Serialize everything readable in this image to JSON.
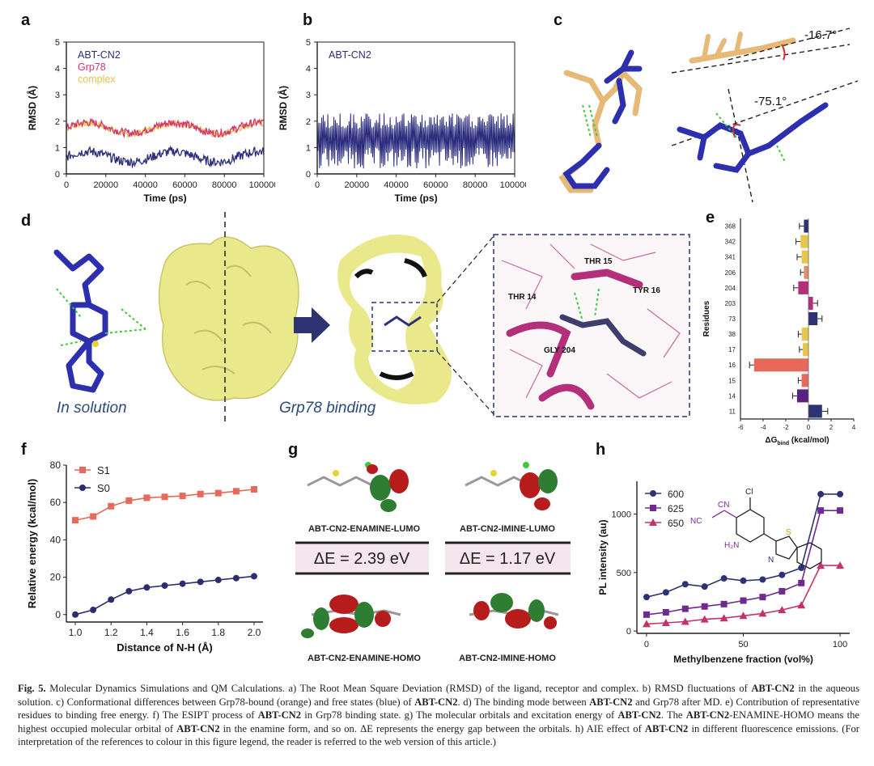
{
  "figure": {
    "panel_labels": [
      "a",
      "b",
      "c",
      "d",
      "e",
      "f",
      "g",
      "h"
    ],
    "colors": {
      "abt_cn2": "#2c2d7d",
      "grp78": "#d2356f",
      "complex": "#e6c24a",
      "s1": "#e8685a",
      "s0": "#2c2d6e",
      "surface": "#e9e88a",
      "purple": "#7a2a9a",
      "pink": "#c2336d"
    },
    "panel_c": {
      "angle1": "-16.7°",
      "angle2": "-75.1°"
    },
    "panel_d": {
      "solution_label": "In solution",
      "binding_label": "Grp78 binding",
      "residue_labels": [
        "THR 15",
        "THR 14",
        "TYR 16",
        "GLY 204"
      ]
    },
    "panel_g": {
      "enamine_lumo": "ABT-CN2-ENAMINE-LUMO",
      "imine_lumo": "ABT-CN2-IMINE-LUMO",
      "enamine_gap": "ΔE = 2.39 eV",
      "imine_gap": "ΔE = 1.17 eV",
      "enamine_homo": "ABT-CN2-ENAMINE-HOMO",
      "imine_homo": "ABT-CN2-IMINE-HOMO"
    },
    "panel_h": {
      "molecule_labels": [
        "CN",
        "NC",
        "Cl",
        "H₂N",
        "S",
        "N"
      ]
    }
  },
  "chart_data": [
    {
      "id": "a",
      "type": "line",
      "xlabel": "Time (ps)",
      "ylabel": "RMSD (Å)",
      "xlim": [
        0,
        100000
      ],
      "ylim": [
        0,
        5
      ],
      "xticks": [
        "0",
        "20000",
        "40000",
        "60000",
        "80000",
        "100000"
      ],
      "yticks": [
        "0",
        "1",
        "2",
        "3",
        "4",
        "5"
      ],
      "series": [
        {
          "name": "ABT-CN2",
          "color": "#2c2d7d",
          "mean": 0.65,
          "noise": 0.18
        },
        {
          "name": "Grp78",
          "color": "#d2356f",
          "mean": 1.75,
          "noise": 0.15
        },
        {
          "name": "complex",
          "color": "#e6c24a",
          "mean": 1.72,
          "noise": 0.12
        }
      ]
    },
    {
      "id": "b",
      "type": "line",
      "xlabel": "Time (ps)",
      "ylabel": "RMSD (Å)",
      "xlim": [
        0,
        100000
      ],
      "ylim": [
        0,
        5
      ],
      "xticks": [
        "0",
        "20000",
        "40000",
        "60000",
        "80000",
        "100000"
      ],
      "yticks": [
        "0",
        "1",
        "2",
        "3",
        "4",
        "5"
      ],
      "series": [
        {
          "name": "ABT-CN2",
          "color": "#2c2d7d",
          "min": 0.2,
          "max": 2.3
        }
      ]
    },
    {
      "id": "e",
      "type": "bar",
      "orientation": "horizontal",
      "xlabel": "ΔG",
      "xlabel_sub": "bind",
      "xlabel_unit": " (kcal/mol)",
      "ylabel": "Residues",
      "xlim": [
        -6,
        4
      ],
      "xticks": [
        "-6",
        "-4",
        "-2",
        "0",
        "2",
        "4"
      ],
      "categories": [
        "368",
        "342",
        "341",
        "206",
        "204",
        "203",
        "73",
        "38",
        "17",
        "16",
        "15",
        "14",
        "11"
      ],
      "values": [
        -0.4,
        -0.7,
        -0.6,
        -0.4,
        -0.9,
        0.4,
        0.8,
        -0.6,
        -0.5,
        -4.8,
        -0.6,
        -1.0,
        1.2
      ],
      "errors": [
        0.4,
        0.4,
        0.4,
        0.3,
        0.4,
        0.4,
        0.4,
        0.3,
        0.3,
        0.4,
        0.3,
        0.4,
        0.5
      ],
      "colors": [
        "#2c3272",
        "#e9c54a",
        "#e9c54a",
        "#e88b69",
        "#b32f7a",
        "#b32f7a",
        "#2c3272",
        "#e9c54a",
        "#e9c54a",
        "#e8685a",
        "#e8685a",
        "#5a2180",
        "#2c3272"
      ]
    },
    {
      "id": "f",
      "type": "line",
      "xlabel": "Distance of N-H (Å)",
      "ylabel": "Relative energy (kcal/mol)",
      "xlim": [
        0.95,
        2.05
      ],
      "ylim": [
        -4,
        80
      ],
      "xticks": [
        "1.0",
        "1.2",
        "1.4",
        "1.6",
        "1.8",
        "2.0"
      ],
      "yticks": [
        "0",
        "20",
        "40",
        "60",
        "80"
      ],
      "x": [
        1.0,
        1.1,
        1.2,
        1.3,
        1.4,
        1.5,
        1.6,
        1.7,
        1.8,
        1.9,
        2.0
      ],
      "series": [
        {
          "name": "S1",
          "color": "#e8685a",
          "marker": "square",
          "values": [
            50.5,
            52.5,
            58,
            61,
            62.5,
            63,
            63.5,
            64.5,
            65,
            66,
            67
          ]
        },
        {
          "name": "S0",
          "color": "#2c2d6e",
          "marker": "circle",
          "values": [
            0,
            2.5,
            8,
            12.5,
            14.5,
            15.5,
            16.5,
            17.5,
            18.5,
            19.5,
            20.5
          ]
        }
      ]
    },
    {
      "id": "h",
      "type": "line",
      "xlabel": "Methylbenzene fraction (vol%)",
      "ylabel": "PL intensity (au)",
      "xlim": [
        -5,
        105
      ],
      "ylim": [
        -20,
        1280
      ],
      "xticks": [
        "0",
        "50",
        "100"
      ],
      "yticks": [
        "0",
        "500",
        "1000"
      ],
      "x": [
        0,
        10,
        20,
        30,
        40,
        50,
        60,
        70,
        80,
        90,
        100
      ],
      "series": [
        {
          "name": "600",
          "color": "#2c3272",
          "marker": "circle",
          "values": [
            290,
            330,
            400,
            380,
            450,
            430,
            440,
            480,
            540,
            1170,
            1170
          ]
        },
        {
          "name": "625",
          "color": "#6e2a8e",
          "marker": "square",
          "values": [
            140,
            160,
            190,
            210,
            230,
            260,
            290,
            340,
            410,
            1030,
            1030
          ]
        },
        {
          "name": "650",
          "color": "#c2336d",
          "marker": "triangle",
          "values": [
            60,
            70,
            80,
            100,
            110,
            130,
            150,
            180,
            220,
            560,
            560
          ]
        }
      ]
    }
  ],
  "caption": {
    "fig": "Fig. 5.",
    "t1": " Molecular Dynamics Simulations and QM Calculations. a) The Root Mean Square Deviation (RMSD) of the ligand, receptor and complex. b) RMSD fluctuations of ",
    "b1": "ABT-CN2",
    "t2": " in the aqueous solution. c) Conformational differences between Grp78-bound (orange) and free states (blue) of ",
    "b2": "ABT-CN2",
    "t3": ". d) The binding mode between ",
    "b3": "ABT-CN2",
    "t4": " and Grp78 after MD. e) Contribution of representative residues to binding free energy. f) The ESIPT process of ",
    "b4": "ABT-CN2",
    "t5": " in Grp78 binding state. g) The molecular orbitals and excitation energy of ",
    "b5": "ABT-CN2",
    "t6": ". The ",
    "b6": "ABT-CN2",
    "t7": "-ENAMINE-HOMO means the highest occupied molecular orbital of ",
    "b7": "ABT-CN2",
    "t8": " in the enamine form, and so on. ΔE represents the energy gap between the orbitals. h) AIE effect of ",
    "b8": "ABT-CN2",
    "t9": " in different fluorescence emissions. (For interpretation of the references to colour in this figure legend, the reader is referred to the web version of this article.)"
  }
}
